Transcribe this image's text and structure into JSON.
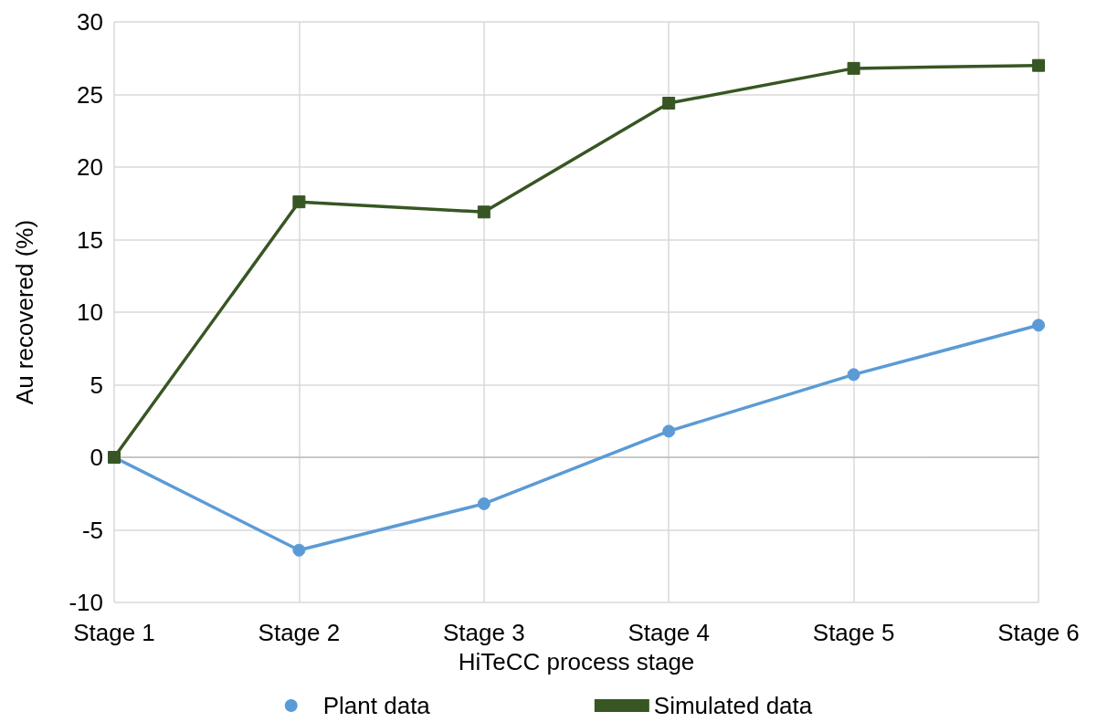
{
  "chart_data": {
    "type": "line",
    "xlabel": "HiTeCC process stage",
    "ylabel": "Au recovered (%)",
    "categories": [
      "Stage 1",
      "Stage 2",
      "Stage 3",
      "Stage 4",
      "Stage 5",
      "Stage 6"
    ],
    "series": [
      {
        "name": "Plant data",
        "color": "#5b9bd5",
        "marker": "circle",
        "values": [
          0,
          -6.4,
          -3.2,
          1.8,
          5.7,
          9.1
        ]
      },
      {
        "name": "Simulated data",
        "color": "#375623",
        "marker": "square",
        "values": [
          0,
          17.6,
          16.9,
          24.4,
          26.8,
          27.0
        ]
      }
    ],
    "ylim": [
      -10,
      30
    ],
    "yticks": [
      -10,
      -5,
      0,
      5,
      10,
      15,
      20,
      25,
      30
    ],
    "grid": true,
    "legend": "bottom",
    "line_style": "solid"
  }
}
